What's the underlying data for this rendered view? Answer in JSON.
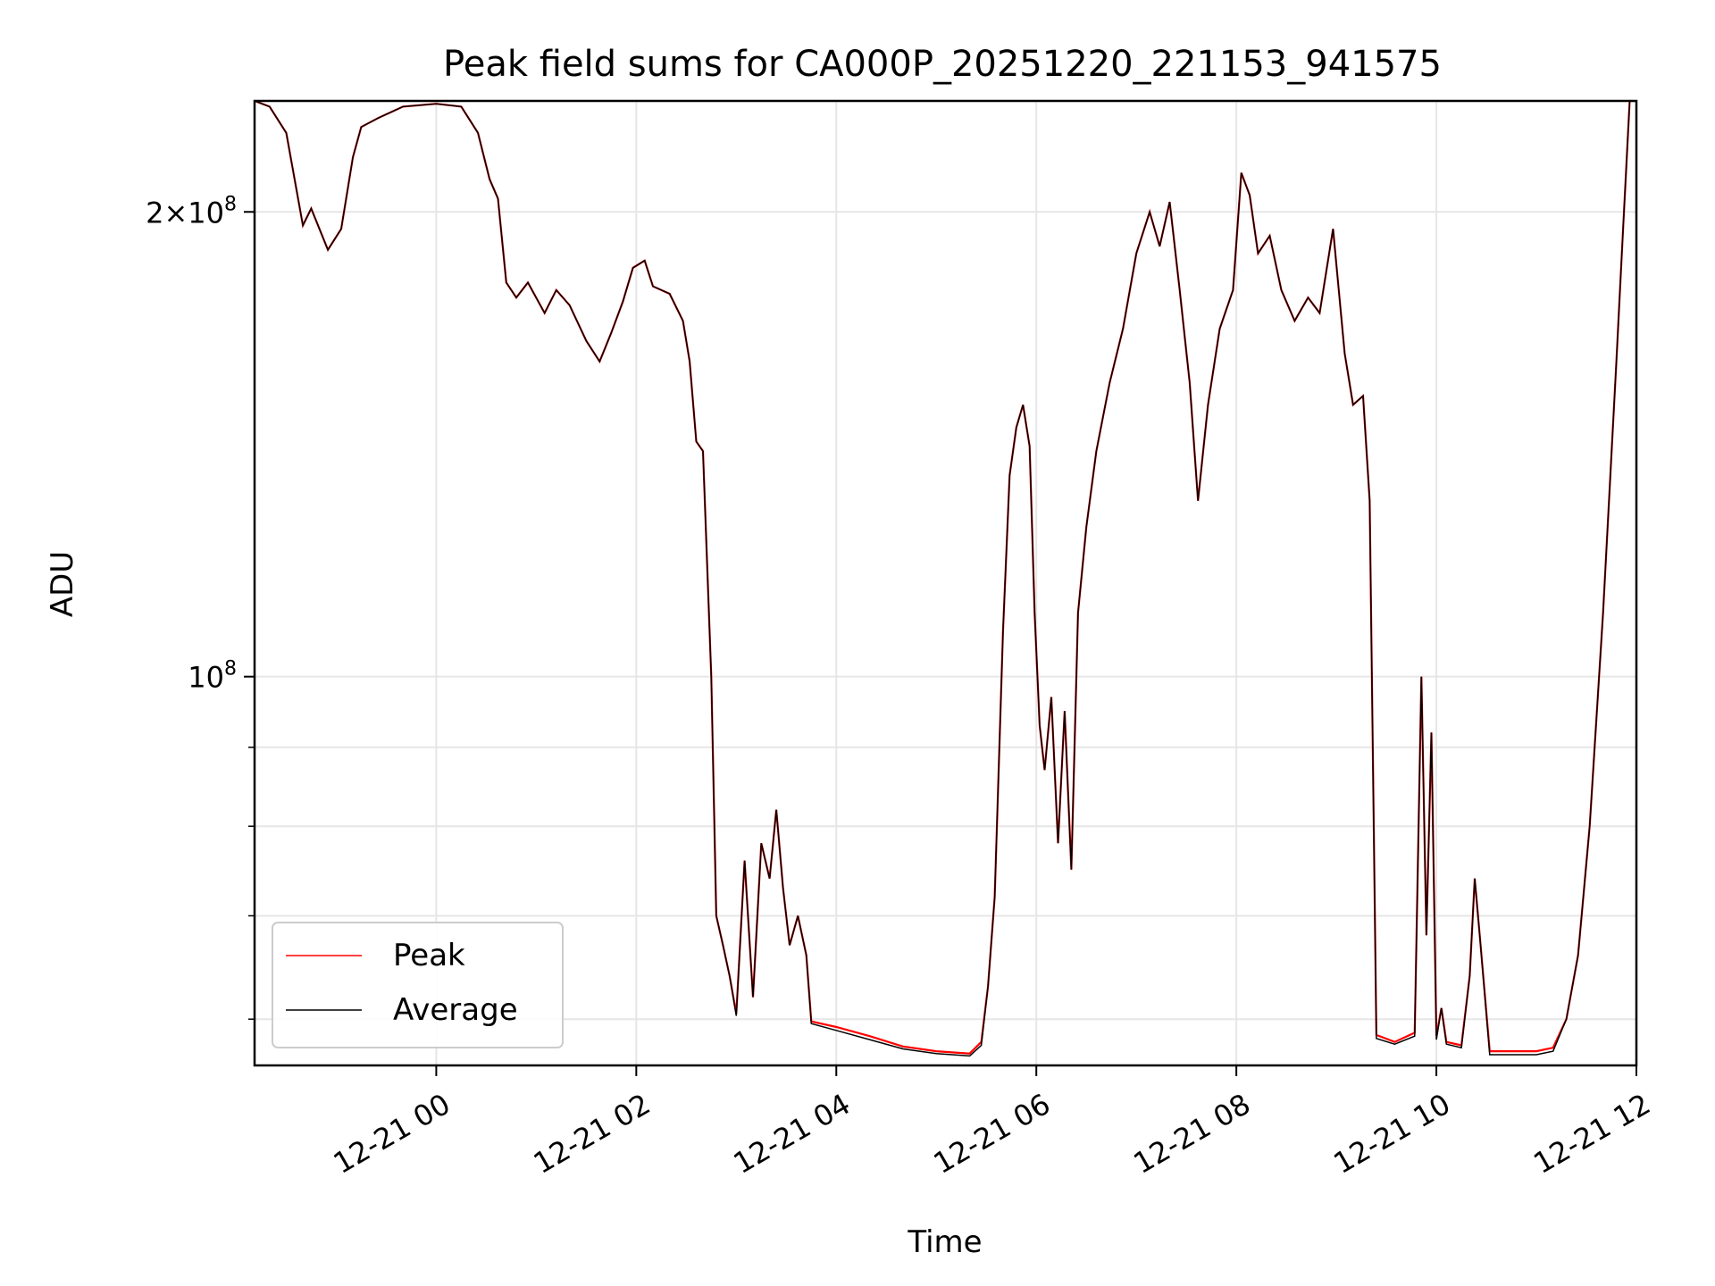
{
  "chart_data": {
    "type": "line",
    "title": "Peak field sums for CA000P_20251220_221153_941575",
    "xlabel": "Time",
    "ylabel": "ADU",
    "y_scale": "log",
    "ylim": [
      56000000,
      236000000
    ],
    "xlim": [
      "2025-12-20 22:11",
      "2025-12-21 12:00"
    ],
    "grid": true,
    "legend_position": "lower-left",
    "x_ticks": [
      "12-21 00",
      "12-21 02",
      "12-21 04",
      "12-21 06",
      "12-21 08",
      "12-21 10",
      "12-21 12"
    ],
    "x_tick_times": [
      "2025-12-21 00:00",
      "2025-12-21 02:00",
      "2025-12-21 04:00",
      "2025-12-21 06:00",
      "2025-12-21 08:00",
      "2025-12-21 10:00",
      "2025-12-21 12:00"
    ],
    "y_major_ticks": [
      {
        "value": 100000000,
        "label": "10^8"
      },
      {
        "value": 200000000,
        "label": "2×10^8"
      }
    ],
    "y_minor_ticks": [
      60000000,
      70000000,
      80000000,
      90000000
    ],
    "series": [
      {
        "name": "Peak",
        "color": "#ff0000",
        "points": [
          [
            "2025-12-20 22:11",
            236.0
          ],
          [
            "2025-12-20 22:20",
            234.0
          ],
          [
            "2025-12-20 22:30",
            225.0
          ],
          [
            "2025-12-20 22:35",
            210.0
          ],
          [
            "2025-12-20 22:40",
            196.0
          ],
          [
            "2025-12-20 22:45",
            201.0
          ],
          [
            "2025-12-20 22:55",
            189.0
          ],
          [
            "2025-12-20 23:03",
            195.0
          ],
          [
            "2025-12-20 23:10",
            217.0
          ],
          [
            "2025-12-20 23:15",
            227.0
          ],
          [
            "2025-12-20 23:25",
            230.0
          ],
          [
            "2025-12-20 23:40",
            234.0
          ],
          [
            "2025-12-21 00:00",
            235.0
          ],
          [
            "2025-12-21 00:15",
            234.0
          ],
          [
            "2025-12-21 00:25",
            225.0
          ],
          [
            "2025-12-21 00:32",
            210.0
          ],
          [
            "2025-12-21 00:37",
            204.0
          ],
          [
            "2025-12-21 00:42",
            180.0
          ],
          [
            "2025-12-21 00:48",
            176.0
          ],
          [
            "2025-12-21 00:55",
            180.0
          ],
          [
            "2025-12-21 01:05",
            172.0
          ],
          [
            "2025-12-21 01:12",
            178.0
          ],
          [
            "2025-12-21 01:20",
            174.0
          ],
          [
            "2025-12-21 01:30",
            165.0
          ],
          [
            "2025-12-21 01:38",
            160.0
          ],
          [
            "2025-12-21 01:45",
            167.0
          ],
          [
            "2025-12-21 01:52",
            175.0
          ],
          [
            "2025-12-21 01:58",
            184.0
          ],
          [
            "2025-12-21 02:05",
            186.0
          ],
          [
            "2025-12-21 02:10",
            179.0
          ],
          [
            "2025-12-21 02:20",
            177.0
          ],
          [
            "2025-12-21 02:28",
            170.0
          ],
          [
            "2025-12-21 02:32",
            160.0
          ],
          [
            "2025-12-21 02:36",
            142.0
          ],
          [
            "2025-12-21 02:40",
            140.0
          ],
          [
            "2025-12-21 02:45",
            100.0
          ],
          [
            "2025-12-21 02:48",
            70.0
          ],
          [
            "2025-12-21 02:52",
            67.0
          ],
          [
            "2025-12-21 02:56",
            64.0
          ],
          [
            "2025-12-21 03:00",
            60.5
          ],
          [
            "2025-12-21 03:05",
            76.0
          ],
          [
            "2025-12-21 03:10",
            62.0
          ],
          [
            "2025-12-21 03:15",
            78.0
          ],
          [
            "2025-12-21 03:20",
            74.0
          ],
          [
            "2025-12-21 03:24",
            82.0
          ],
          [
            "2025-12-21 03:28",
            73.0
          ],
          [
            "2025-12-21 03:32",
            67.0
          ],
          [
            "2025-12-21 03:37",
            70.0
          ],
          [
            "2025-12-21 03:42",
            66.0
          ],
          [
            "2025-12-21 03:45",
            59.8
          ],
          [
            "2025-12-21 04:00",
            59.3
          ],
          [
            "2025-12-21 04:20",
            58.5
          ],
          [
            "2025-12-21 04:40",
            57.6
          ],
          [
            "2025-12-21 05:00",
            57.2
          ],
          [
            "2025-12-21 05:20",
            57.0
          ],
          [
            "2025-12-21 05:27",
            58.0
          ],
          [
            "2025-12-21 05:31",
            63.0
          ],
          [
            "2025-12-21 05:35",
            72.0
          ],
          [
            "2025-12-21 05:40",
            107.0
          ],
          [
            "2025-12-21 05:44",
            135.0
          ],
          [
            "2025-12-21 05:48",
            145.0
          ],
          [
            "2025-12-21 05:52",
            150.0
          ],
          [
            "2025-12-21 05:56",
            141.0
          ],
          [
            "2025-12-21 05:59",
            110.0
          ],
          [
            "2025-12-21 06:02",
            93.0
          ],
          [
            "2025-12-21 06:05",
            87.0
          ],
          [
            "2025-12-21 06:09",
            97.0
          ],
          [
            "2025-12-21 06:13",
            78.0
          ],
          [
            "2025-12-21 06:17",
            95.0
          ],
          [
            "2025-12-21 06:21",
            75.0
          ],
          [
            "2025-12-21 06:25",
            110.0
          ],
          [
            "2025-12-21 06:30",
            125.0
          ],
          [
            "2025-12-21 06:36",
            140.0
          ],
          [
            "2025-12-21 06:44",
            155.0
          ],
          [
            "2025-12-21 06:52",
            168.0
          ],
          [
            "2025-12-21 07:00",
            188.0
          ],
          [
            "2025-12-21 07:08",
            200.0
          ],
          [
            "2025-12-21 07:14",
            190.0
          ],
          [
            "2025-12-21 07:20",
            203.0
          ],
          [
            "2025-12-21 07:26",
            178.0
          ],
          [
            "2025-12-21 07:32",
            155.0
          ],
          [
            "2025-12-21 07:37",
            130.0
          ],
          [
            "2025-12-21 07:43",
            150.0
          ],
          [
            "2025-12-21 07:50",
            168.0
          ],
          [
            "2025-12-21 07:58",
            178.0
          ],
          [
            "2025-12-21 08:03",
            212.0
          ],
          [
            "2025-12-21 08:08",
            205.0
          ],
          [
            "2025-12-21 08:13",
            188.0
          ],
          [
            "2025-12-21 08:20",
            193.0
          ],
          [
            "2025-12-21 08:27",
            178.0
          ],
          [
            "2025-12-21 08:35",
            170.0
          ],
          [
            "2025-12-21 08:43",
            176.0
          ],
          [
            "2025-12-21 08:50",
            172.0
          ],
          [
            "2025-12-21 08:58",
            195.0
          ],
          [
            "2025-12-21 09:05",
            162.0
          ],
          [
            "2025-12-21 09:10",
            150.0
          ],
          [
            "2025-12-21 09:16",
            152.0
          ],
          [
            "2025-12-21 09:20",
            130.0
          ],
          [
            "2025-12-21 09:24",
            58.6
          ],
          [
            "2025-12-21 09:35",
            58.0
          ],
          [
            "2025-12-21 09:47",
            58.8
          ],
          [
            "2025-12-21 09:51",
            100.0
          ],
          [
            "2025-12-21 09:54",
            68.0
          ],
          [
            "2025-12-21 09:57",
            92.0
          ],
          [
            "2025-12-21 10:00",
            58.5
          ],
          [
            "2025-12-21 10:03",
            61.0
          ],
          [
            "2025-12-21 10:06",
            58.0
          ],
          [
            "2025-12-21 10:15",
            57.7
          ],
          [
            "2025-12-21 10:20",
            64.0
          ],
          [
            "2025-12-21 10:23",
            74.0
          ],
          [
            "2025-12-21 10:26",
            68.0
          ],
          [
            "2025-12-21 10:32",
            57.2
          ],
          [
            "2025-12-21 10:45",
            57.2
          ],
          [
            "2025-12-21 11:00",
            57.2
          ],
          [
            "2025-12-21 11:10",
            57.5
          ],
          [
            "2025-12-21 11:18",
            60.0
          ],
          [
            "2025-12-21 11:25",
            66.0
          ],
          [
            "2025-12-21 11:32",
            80.0
          ],
          [
            "2025-12-21 11:40",
            110.0
          ],
          [
            "2025-12-21 11:48",
            160.0
          ],
          [
            "2025-12-21 11:52",
            195.0
          ],
          [
            "2025-12-21 11:56",
            236.0
          ],
          [
            "2025-12-21 12:00",
            236.0
          ]
        ]
      },
      {
        "name": "Average",
        "color": "#000000",
        "points": [
          [
            "2025-12-20 22:11",
            236.0
          ],
          [
            "2025-12-20 22:20",
            234.0
          ],
          [
            "2025-12-20 22:30",
            225.0
          ],
          [
            "2025-12-20 22:35",
            210.0
          ],
          [
            "2025-12-20 22:40",
            196.0
          ],
          [
            "2025-12-20 22:45",
            201.0
          ],
          [
            "2025-12-20 22:55",
            189.0
          ],
          [
            "2025-12-20 23:03",
            195.0
          ],
          [
            "2025-12-20 23:10",
            217.0
          ],
          [
            "2025-12-20 23:15",
            227.0
          ],
          [
            "2025-12-20 23:25",
            230.0
          ],
          [
            "2025-12-20 23:40",
            234.0
          ],
          [
            "2025-12-21 00:00",
            235.0
          ],
          [
            "2025-12-21 00:15",
            234.0
          ],
          [
            "2025-12-21 00:25",
            225.0
          ],
          [
            "2025-12-21 00:32",
            210.0
          ],
          [
            "2025-12-21 00:37",
            204.0
          ],
          [
            "2025-12-21 00:42",
            180.0
          ],
          [
            "2025-12-21 00:48",
            176.0
          ],
          [
            "2025-12-21 00:55",
            180.0
          ],
          [
            "2025-12-21 01:05",
            172.0
          ],
          [
            "2025-12-21 01:12",
            178.0
          ],
          [
            "2025-12-21 01:20",
            174.0
          ],
          [
            "2025-12-21 01:30",
            165.0
          ],
          [
            "2025-12-21 01:38",
            160.0
          ],
          [
            "2025-12-21 01:45",
            167.0
          ],
          [
            "2025-12-21 01:52",
            175.0
          ],
          [
            "2025-12-21 01:58",
            184.0
          ],
          [
            "2025-12-21 02:05",
            186.0
          ],
          [
            "2025-12-21 02:10",
            179.0
          ],
          [
            "2025-12-21 02:20",
            177.0
          ],
          [
            "2025-12-21 02:28",
            170.0
          ],
          [
            "2025-12-21 02:32",
            160.0
          ],
          [
            "2025-12-21 02:36",
            142.0
          ],
          [
            "2025-12-21 02:40",
            140.0
          ],
          [
            "2025-12-21 02:45",
            100.0
          ],
          [
            "2025-12-21 02:48",
            70.0
          ],
          [
            "2025-12-21 02:52",
            67.0
          ],
          [
            "2025-12-21 02:56",
            64.0
          ],
          [
            "2025-12-21 03:00",
            60.3
          ],
          [
            "2025-12-21 03:05",
            76.0
          ],
          [
            "2025-12-21 03:10",
            62.0
          ],
          [
            "2025-12-21 03:15",
            78.0
          ],
          [
            "2025-12-21 03:20",
            74.0
          ],
          [
            "2025-12-21 03:24",
            82.0
          ],
          [
            "2025-12-21 03:28",
            73.0
          ],
          [
            "2025-12-21 03:32",
            67.0
          ],
          [
            "2025-12-21 03:37",
            70.0
          ],
          [
            "2025-12-21 03:42",
            66.0
          ],
          [
            "2025-12-21 03:45",
            59.6
          ],
          [
            "2025-12-21 04:00",
            59.0
          ],
          [
            "2025-12-21 04:20",
            58.2
          ],
          [
            "2025-12-21 04:40",
            57.4
          ],
          [
            "2025-12-21 05:00",
            57.0
          ],
          [
            "2025-12-21 05:20",
            56.8
          ],
          [
            "2025-12-21 05:27",
            57.7
          ],
          [
            "2025-12-21 05:31",
            63.0
          ],
          [
            "2025-12-21 05:35",
            72.0
          ],
          [
            "2025-12-21 05:40",
            107.0
          ],
          [
            "2025-12-21 05:44",
            135.0
          ],
          [
            "2025-12-21 05:48",
            145.0
          ],
          [
            "2025-12-21 05:52",
            150.0
          ],
          [
            "2025-12-21 05:56",
            141.0
          ],
          [
            "2025-12-21 05:59",
            110.0
          ],
          [
            "2025-12-21 06:02",
            93.0
          ],
          [
            "2025-12-21 06:05",
            87.0
          ],
          [
            "2025-12-21 06:09",
            97.0
          ],
          [
            "2025-12-21 06:13",
            78.0
          ],
          [
            "2025-12-21 06:17",
            95.0
          ],
          [
            "2025-12-21 06:21",
            75.0
          ],
          [
            "2025-12-21 06:25",
            110.0
          ],
          [
            "2025-12-21 06:30",
            125.0
          ],
          [
            "2025-12-21 06:36",
            140.0
          ],
          [
            "2025-12-21 06:44",
            155.0
          ],
          [
            "2025-12-21 06:52",
            168.0
          ],
          [
            "2025-12-21 07:00",
            188.0
          ],
          [
            "2025-12-21 07:08",
            200.0
          ],
          [
            "2025-12-21 07:14",
            190.0
          ],
          [
            "2025-12-21 07:20",
            203.0
          ],
          [
            "2025-12-21 07:26",
            178.0
          ],
          [
            "2025-12-21 07:32",
            155.0
          ],
          [
            "2025-12-21 07:37",
            130.0
          ],
          [
            "2025-12-21 07:43",
            150.0
          ],
          [
            "2025-12-21 07:50",
            168.0
          ],
          [
            "2025-12-21 07:58",
            178.0
          ],
          [
            "2025-12-21 08:03",
            212.0
          ],
          [
            "2025-12-21 08:08",
            205.0
          ],
          [
            "2025-12-21 08:13",
            188.0
          ],
          [
            "2025-12-21 08:20",
            193.0
          ],
          [
            "2025-12-21 08:27",
            178.0
          ],
          [
            "2025-12-21 08:35",
            170.0
          ],
          [
            "2025-12-21 08:43",
            176.0
          ],
          [
            "2025-12-21 08:50",
            172.0
          ],
          [
            "2025-12-21 08:58",
            195.0
          ],
          [
            "2025-12-21 09:05",
            162.0
          ],
          [
            "2025-12-21 09:10",
            150.0
          ],
          [
            "2025-12-21 09:16",
            152.0
          ],
          [
            "2025-12-21 09:20",
            130.0
          ],
          [
            "2025-12-21 09:24",
            58.3
          ],
          [
            "2025-12-21 09:35",
            57.8
          ],
          [
            "2025-12-21 09:47",
            58.5
          ],
          [
            "2025-12-21 09:51",
            100.0
          ],
          [
            "2025-12-21 09:54",
            68.0
          ],
          [
            "2025-12-21 09:57",
            92.0
          ],
          [
            "2025-12-21 10:00",
            58.2
          ],
          [
            "2025-12-21 10:03",
            61.0
          ],
          [
            "2025-12-21 10:06",
            57.8
          ],
          [
            "2025-12-21 10:15",
            57.5
          ],
          [
            "2025-12-21 10:20",
            64.0
          ],
          [
            "2025-12-21 10:23",
            74.0
          ],
          [
            "2025-12-21 10:26",
            68.0
          ],
          [
            "2025-12-21 10:32",
            56.9
          ],
          [
            "2025-12-21 10:45",
            56.9
          ],
          [
            "2025-12-21 11:00",
            56.9
          ],
          [
            "2025-12-21 11:10",
            57.2
          ],
          [
            "2025-12-21 11:18",
            60.0
          ],
          [
            "2025-12-21 11:25",
            66.0
          ],
          [
            "2025-12-21 11:32",
            80.0
          ],
          [
            "2025-12-21 11:40",
            110.0
          ],
          [
            "2025-12-21 11:48",
            160.0
          ],
          [
            "2025-12-21 11:52",
            195.0
          ],
          [
            "2025-12-21 11:56",
            236.0
          ],
          [
            "2025-12-21 12:00",
            236.0
          ]
        ]
      }
    ],
    "value_unit_scale": 1000000
  }
}
